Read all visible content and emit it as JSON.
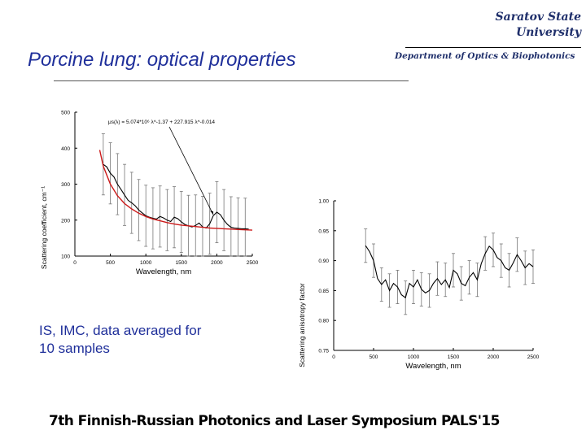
{
  "header": {
    "institution": [
      "Saratov State",
      "University"
    ],
    "department": "Department of Optics & Biophotonics"
  },
  "slide": {
    "title": "Porcine lung: optical properties",
    "caption": [
      "IS, IMC, data averaged for",
      "10 samples"
    ],
    "footer": "7th Finnish-Russian Photonics and Laser Symposium PALS'15"
  },
  "chart_data": [
    {
      "type": "line",
      "title": "",
      "xlabel": "Wavelength, nm",
      "ylabel": "Scattering coefficient, cm⁻¹",
      "xlim": [
        0,
        2500
      ],
      "ylim": [
        100,
        500
      ],
      "xticks": [
        0,
        500,
        1000,
        1500,
        2000,
        2500
      ],
      "yticks": [
        100,
        200,
        300,
        400,
        500
      ],
      "annotation": "μs(λ) = 5.074*10⁶ λ^-1.37 + 227.915 λ^-0.014",
      "series": [
        {
          "color": "#000000",
          "x": [
            400,
            450,
            500,
            550,
            600,
            650,
            700,
            750,
            800,
            850,
            900,
            950,
            1000,
            1050,
            1100,
            1150,
            1200,
            1250,
            1300,
            1350,
            1400,
            1450,
            1500,
            1550,
            1600,
            1650,
            1700,
            1750,
            1800,
            1850,
            1900,
            1950,
            2000,
            2050,
            2100,
            2150,
            2200,
            2250,
            2300,
            2350,
            2400,
            2450
          ],
          "y": [
            355,
            348,
            330,
            320,
            300,
            285,
            270,
            255,
            248,
            240,
            228,
            220,
            212,
            208,
            205,
            203,
            210,
            206,
            200,
            196,
            208,
            204,
            195,
            188,
            184,
            181,
            185,
            192,
            181,
            178,
            190,
            212,
            222,
            215,
            200,
            188,
            180,
            178,
            177,
            176,
            176,
            175
          ],
          "error": 85
        },
        {
          "color": "#cc1a1a",
          "x": [
            350,
            400,
            500,
            600,
            700,
            800,
            900,
            1000,
            1100,
            1200,
            1300,
            1400,
            1500,
            1600,
            1700,
            1800,
            1900,
            2000,
            2100,
            2200,
            2300,
            2400,
            2500
          ],
          "y": [
            395,
            350,
            300,
            268,
            246,
            231,
            219,
            210,
            203,
            198,
            193,
            189,
            186,
            184,
            182,
            180,
            178,
            177,
            176,
            175,
            174,
            173,
            172
          ]
        }
      ]
    },
    {
      "type": "line",
      "title": "",
      "xlabel": "Wavelength, nm",
      "ylabel": "Scattering anisotropy factor",
      "xlim": [
        0,
        2500
      ],
      "ylim": [
        0.75,
        1.0
      ],
      "xticks": [
        0,
        500,
        1000,
        1500,
        2000,
        2500
      ],
      "yticks": [
        0.75,
        0.8,
        0.85,
        0.9,
        0.95,
        1.0
      ],
      "series": [
        {
          "color": "#000000",
          "x": [
            400,
            450,
            500,
            550,
            600,
            650,
            700,
            750,
            800,
            850,
            900,
            950,
            1000,
            1050,
            1100,
            1150,
            1200,
            1250,
            1300,
            1350,
            1400,
            1450,
            1500,
            1550,
            1600,
            1650,
            1700,
            1750,
            1800,
            1850,
            1900,
            1950,
            2000,
            2050,
            2100,
            2150,
            2200,
            2250,
            2300,
            2350,
            2400,
            2450,
            2500
          ],
          "y": [
            0.925,
            0.915,
            0.9,
            0.87,
            0.86,
            0.868,
            0.85,
            0.862,
            0.856,
            0.843,
            0.838,
            0.862,
            0.856,
            0.868,
            0.852,
            0.846,
            0.85,
            0.862,
            0.87,
            0.86,
            0.868,
            0.855,
            0.884,
            0.878,
            0.862,
            0.858,
            0.872,
            0.88,
            0.868,
            0.895,
            0.912,
            0.924,
            0.918,
            0.905,
            0.9,
            0.888,
            0.884,
            0.896,
            0.91,
            0.9,
            0.888,
            0.895,
            0.89
          ],
          "error": 0.028
        }
      ]
    }
  ]
}
